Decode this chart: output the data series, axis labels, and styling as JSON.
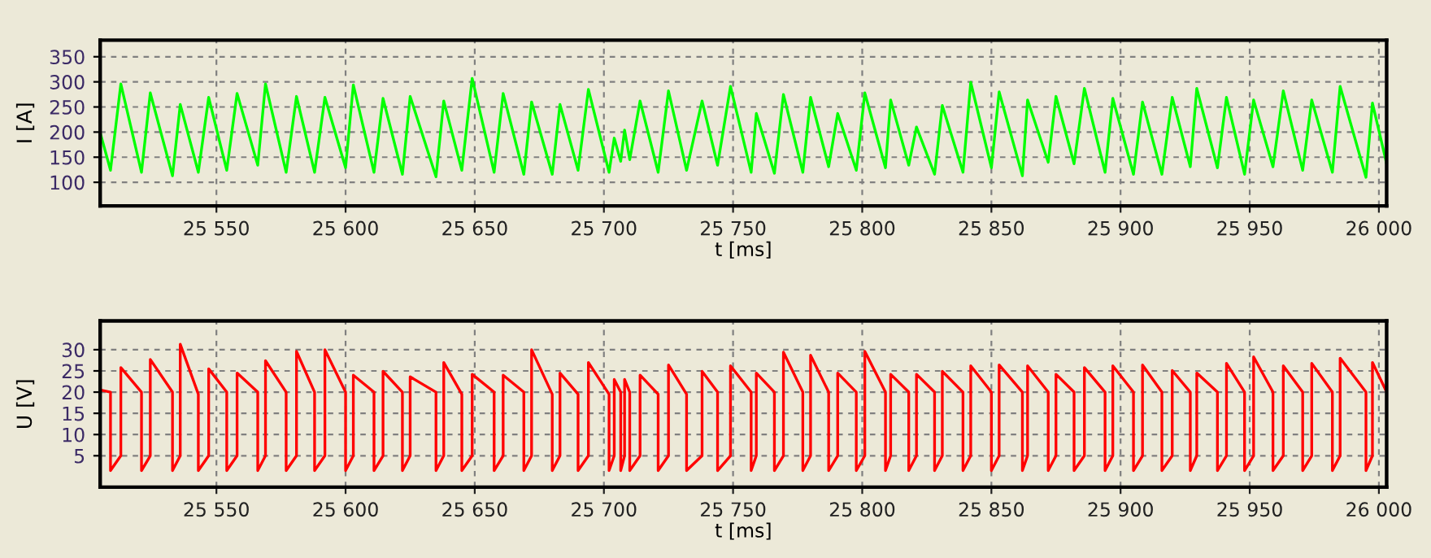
{
  "chart_data": [
    {
      "type": "line",
      "xlabel": "t [ms]",
      "ylabel": "I [A]",
      "grid": true,
      "marker": "none",
      "line_style": "solid",
      "xlim": [
        25505,
        26003
      ],
      "ylim": [
        53,
        383
      ],
      "xticks": [
        {
          "value": 25550,
          "label": "25 550"
        },
        {
          "value": 25600,
          "label": "25 600"
        },
        {
          "value": 25650,
          "label": "25 650"
        },
        {
          "value": 25700,
          "label": "25 700"
        },
        {
          "value": 25750,
          "label": "25 750"
        },
        {
          "value": 25800,
          "label": "25 800"
        },
        {
          "value": 25850,
          "label": "25 850"
        },
        {
          "value": 25900,
          "label": "25 900"
        },
        {
          "value": 25950,
          "label": "25 950"
        },
        {
          "value": 26000,
          "label": "26 000"
        }
      ],
      "yticks": [
        100,
        150,
        200,
        250,
        300,
        350
      ],
      "series": [
        {
          "color": "#00ff00",
          "x": [
            25505,
            25509,
            25513,
            25521,
            25524.4,
            25533,
            25536,
            25543,
            25547,
            25554,
            25558,
            25566,
            25569,
            25577,
            25581,
            25588,
            25592,
            25600,
            25603,
            25611,
            25614.5,
            25622,
            25625,
            25635,
            25638,
            25645,
            25649,
            25657.5,
            25661,
            25669,
            25672,
            25680,
            25683,
            25690,
            25694,
            25702,
            25704,
            25706.5,
            25708,
            25710,
            25714,
            25721,
            25725,
            25732,
            25738,
            25744,
            25749,
            25757,
            25759,
            25766,
            25769.5,
            25777,
            25780,
            25787,
            25790.5,
            25797.7,
            25801,
            25809,
            25811,
            25818,
            25821,
            25828,
            25831,
            25839,
            25842,
            25850,
            25853,
            25862,
            25864,
            25872,
            25875,
            25882,
            25886,
            25894,
            25897,
            25905,
            25908.5,
            25916,
            25920,
            25927,
            25929.5,
            25937.5,
            25941,
            25948,
            25951.5,
            25959,
            25963,
            25970.5,
            25974,
            25982,
            25985,
            25995,
            25997.5,
            26003
          ],
          "values": [
            199,
            124,
            296,
            120,
            278,
            113,
            255,
            120,
            269,
            124,
            277,
            134,
            296,
            120,
            271,
            120,
            269,
            129,
            294,
            120,
            267,
            116,
            271,
            111,
            262,
            124,
            307,
            120,
            277,
            116,
            260,
            116,
            255,
            124,
            285,
            120,
            188,
            142,
            204,
            145,
            262,
            120,
            282,
            124,
            262,
            134,
            291,
            120,
            237,
            118,
            275,
            120,
            269,
            131,
            237,
            124,
            278,
            129,
            264,
            134,
            210,
            116,
            253,
            120,
            299,
            129,
            280,
            113,
            264,
            140,
            271,
            137,
            287,
            120,
            267,
            116,
            260,
            116,
            269,
            131,
            287,
            129,
            269,
            116,
            264,
            131,
            282,
            124,
            264,
            120,
            291,
            110,
            258,
            137
          ]
        }
      ]
    },
    {
      "type": "line",
      "xlabel": "t [ms]",
      "ylabel": "U [V]",
      "grid": true,
      "marker": "none",
      "line_style": "solid",
      "xlim": [
        25505,
        26003
      ],
      "ylim": [
        -2.4,
        36.8
      ],
      "xticks": [
        {
          "value": 25550,
          "label": "25 550"
        },
        {
          "value": 25600,
          "label": "25 600"
        },
        {
          "value": 25650,
          "label": "25 650"
        },
        {
          "value": 25700,
          "label": "25 700"
        },
        {
          "value": 25750,
          "label": "25 750"
        },
        {
          "value": 25800,
          "label": "25 800"
        },
        {
          "value": 25850,
          "label": "25 850"
        },
        {
          "value": 25900,
          "label": "25 900"
        },
        {
          "value": 25950,
          "label": "25 950"
        },
        {
          "value": 26000,
          "label": "26 000"
        }
      ],
      "yticks": [
        5,
        10,
        15,
        20,
        25,
        30
      ],
      "series": [
        {
          "color": "#ff0000",
          "x": [
            25505,
            25509,
            25509,
            25513,
            25513,
            25521,
            25521,
            25524.4,
            25524.4,
            25533,
            25533,
            25536,
            25536,
            25543,
            25543,
            25547,
            25547,
            25554,
            25554,
            25558,
            25558,
            25566,
            25566,
            25569,
            25569,
            25577,
            25577,
            25581,
            25581,
            25588,
            25588,
            25592,
            25592,
            25600,
            25600,
            25603,
            25603,
            25611,
            25611,
            25614.5,
            25614.5,
            25622,
            25622,
            25625,
            25625,
            25635,
            25635,
            25638,
            25638,
            25645,
            25645,
            25649,
            25649,
            25657.5,
            25657.5,
            25661,
            25661,
            25669,
            25669,
            25672,
            25672,
            25680,
            25680,
            25683,
            25683,
            25690,
            25690,
            25694,
            25694,
            25702,
            25702,
            25704,
            25704,
            25706.5,
            25706.5,
            25708,
            25708,
            25710,
            25710,
            25714,
            25714,
            25721,
            25721,
            25725,
            25725,
            25732,
            25732,
            25738,
            25738,
            25744,
            25744,
            25749,
            25749,
            25757,
            25757,
            25759,
            25759,
            25766,
            25766,
            25769.5,
            25769.5,
            25777,
            25777,
            25780,
            25780,
            25787,
            25787,
            25790.5,
            25790.5,
            25797.7,
            25797.7,
            25801,
            25801,
            25809,
            25809,
            25811,
            25811,
            25818,
            25818,
            25821,
            25821,
            25828,
            25828,
            25831,
            25831,
            25839,
            25839,
            25842,
            25842,
            25850,
            25850,
            25853,
            25853,
            25862,
            25862,
            25864,
            25864,
            25872,
            25872,
            25875,
            25875,
            25882,
            25882,
            25886,
            25886,
            25894,
            25894,
            25897,
            25897,
            25905,
            25905,
            25908.5,
            25908.5,
            25916,
            25916,
            25920,
            25920,
            25927,
            25927,
            25929.5,
            25929.5,
            25937.5,
            25937.5,
            25941,
            25941,
            25948,
            25948,
            25951.5,
            25951.5,
            25959,
            25959,
            25963,
            25963,
            25970.5,
            25970.5,
            25974,
            25974,
            25982,
            25982,
            25985,
            25985,
            25995,
            25995,
            25997.5,
            25997.5,
            26003
          ],
          "values": [
            20.5,
            20,
            1.5,
            5,
            25.8,
            20,
            1.5,
            5,
            27.7,
            20,
            1.5,
            5,
            31.3,
            19.5,
            1.5,
            5,
            25.5,
            20,
            1.5,
            5,
            24.5,
            20,
            1.5,
            5,
            27.4,
            20,
            1.5,
            5,
            29.6,
            20,
            1.5,
            5,
            30,
            20,
            1.5,
            5,
            24,
            20,
            1.5,
            5,
            24.9,
            20,
            1.5,
            5,
            23.6,
            20,
            1.5,
            5,
            27,
            19.5,
            1.5,
            5,
            24.2,
            20,
            1.5,
            5,
            24,
            20,
            1.5,
            5,
            30,
            19.5,
            1.5,
            5,
            24.5,
            19.5,
            1.5,
            5,
            27,
            19.5,
            1.5,
            5,
            23,
            20,
            1.5,
            5,
            23,
            20,
            1.5,
            5,
            24,
            19.5,
            1.5,
            5,
            26.4,
            19.5,
            1.5,
            5,
            24.9,
            20,
            1.5,
            5,
            26.2,
            20,
            1.5,
            5,
            24.5,
            20,
            1.5,
            5,
            29.4,
            20,
            1.5,
            5,
            28.7,
            20,
            1.5,
            5,
            24.5,
            20,
            1.5,
            5,
            29.6,
            20,
            1.5,
            5,
            24.2,
            20,
            1.5,
            5,
            24.2,
            20,
            1.5,
            5,
            24.9,
            20,
            1.5,
            5,
            26.2,
            20,
            1.5,
            5,
            26.4,
            20,
            1.5,
            5,
            26.2,
            20,
            1.5,
            5,
            24.2,
            20,
            1.5,
            5,
            25.8,
            20,
            1.5,
            5,
            26.2,
            20,
            1.5,
            5,
            26.4,
            20,
            1.5,
            5,
            25.1,
            20,
            1.5,
            5,
            24.5,
            20,
            1.5,
            5,
            26.8,
            20,
            1.5,
            5,
            28.3,
            20,
            1.5,
            5,
            26.2,
            20,
            1.5,
            5,
            26.8,
            20,
            1.5,
            5,
            28,
            20,
            1.5,
            5,
            27,
            20
          ]
        }
      ]
    }
  ]
}
